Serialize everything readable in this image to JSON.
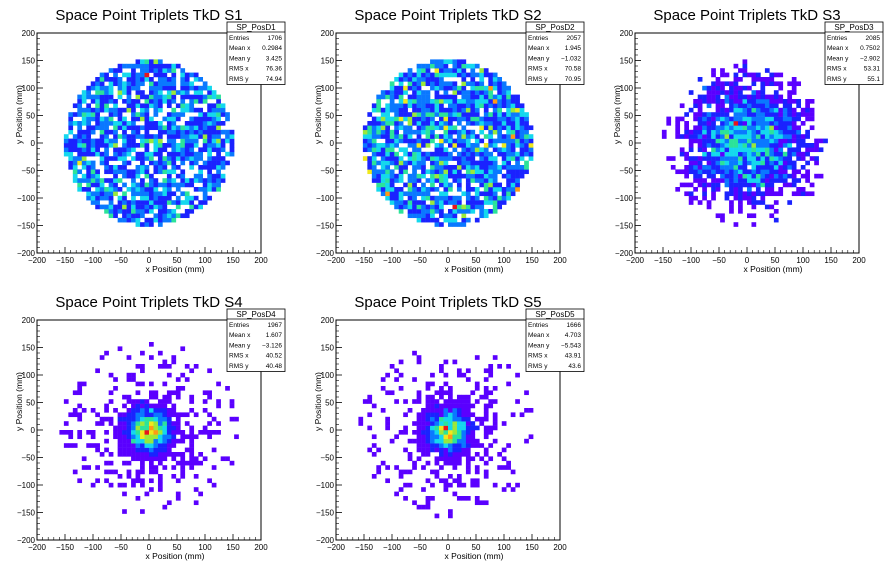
{
  "chart_data": [
    {
      "type": "heatmap",
      "title": "Space Point Triplets TkD S1",
      "xlabel": "x Position (mm)",
      "ylabel": "y Position (mm)",
      "xlim": [
        -200,
        200
      ],
      "ylim": [
        -200,
        200
      ],
      "x_ticks": [
        "−200",
        "−150",
        "−100",
        "−50",
        "0",
        "50",
        "100",
        "150",
        "200"
      ],
      "y_ticks": [
        "200",
        "150",
        "100",
        "50",
        "0",
        "−50",
        "−100",
        "−150",
        "−200"
      ],
      "distribution": {
        "shape": "uniform-disk",
        "radius_mm": 150,
        "entries": 1706,
        "bin_mm": 8
      },
      "stats": {
        "name": "SP_PosD1",
        "rows": [
          [
            "Entries",
            "1706"
          ],
          [
            "Mean x",
            "0.2984"
          ],
          [
            "Mean y",
            "3.425"
          ],
          [
            "RMS x",
            "76.36"
          ],
          [
            "RMS y",
            "74.94"
          ]
        ]
      }
    },
    {
      "type": "heatmap",
      "title": "Space Point Triplets TkD S2",
      "xlabel": "x Position (mm)",
      "ylabel": "y Position (mm)",
      "xlim": [
        -200,
        200
      ],
      "ylim": [
        -200,
        200
      ],
      "x_ticks": [
        "−200",
        "−150",
        "−100",
        "−50",
        "0",
        "50",
        "100",
        "150",
        "200"
      ],
      "y_ticks": [
        "200",
        "150",
        "100",
        "50",
        "0",
        "−50",
        "−100",
        "−150",
        "−200"
      ],
      "distribution": {
        "shape": "uniform-disk",
        "radius_mm": 152,
        "entries": 2057,
        "bin_mm": 8
      },
      "stats": {
        "name": "SP_PosD2",
        "rows": [
          [
            "Entries",
            "2057"
          ],
          [
            "Mean x",
            "1.945"
          ],
          [
            "Mean y",
            "−1.032"
          ],
          [
            "RMS x",
            "70.58"
          ],
          [
            "RMS y",
            "70.95"
          ]
        ]
      }
    },
    {
      "type": "heatmap",
      "title": "Space Point Triplets TkD S3",
      "xlabel": "x Position (mm)",
      "ylabel": "y Position (mm)",
      "xlim": [
        -200,
        200
      ],
      "ylim": [
        -200,
        200
      ],
      "x_ticks": [
        "−200",
        "−150",
        "−100",
        "−50",
        "0",
        "50",
        "100",
        "150",
        "200"
      ],
      "y_ticks": [
        "200",
        "150",
        "100",
        "50",
        "0",
        "−50",
        "−100",
        "−150",
        "−200"
      ],
      "distribution": {
        "shape": "gaussian",
        "sigma_mm": 55,
        "entries": 2085,
        "bin_mm": 8
      },
      "stats": {
        "name": "SP_PosD3",
        "rows": [
          [
            "Entries",
            "2085"
          ],
          [
            "Mean x",
            "0.7502"
          ],
          [
            "Mean y",
            "−2.902"
          ],
          [
            "RMS x",
            "53.31"
          ],
          [
            "RMS y",
            "55.1"
          ]
        ]
      }
    },
    {
      "type": "heatmap",
      "title": "Space Point Triplets TkD S4",
      "xlabel": "x Position (mm)",
      "ylabel": "y Position (mm)",
      "xlim": [
        -200,
        200
      ],
      "ylim": [
        -200,
        200
      ],
      "x_ticks": [
        "−200",
        "−150",
        "−100",
        "−50",
        "0",
        "50",
        "100",
        "150",
        "200"
      ],
      "y_ticks": [
        "200",
        "150",
        "100",
        "50",
        "0",
        "−50",
        "−100",
        "−150",
        "−200"
      ],
      "distribution": {
        "shape": "gaussian-core-tails",
        "sigma_mm": 22,
        "entries": 1967,
        "bin_mm": 8
      },
      "stats": {
        "name": "SP_PosD4",
        "rows": [
          [
            "Entries",
            "1967"
          ],
          [
            "Mean x",
            "1.607"
          ],
          [
            "Mean y",
            "−3.126"
          ],
          [
            "RMS x",
            "40.52"
          ],
          [
            "RMS y",
            "40.48"
          ]
        ]
      }
    },
    {
      "type": "heatmap",
      "title": "Space Point Triplets TkD S5",
      "xlabel": "x Position (mm)",
      "ylabel": "y Position (mm)",
      "xlim": [
        -200,
        200
      ],
      "ylim": [
        -200,
        200
      ],
      "x_ticks": [
        "−200",
        "−150",
        "−100",
        "−50",
        "0",
        "50",
        "100",
        "150",
        "200"
      ],
      "y_ticks": [
        "200",
        "150",
        "100",
        "50",
        "0",
        "−50",
        "−100",
        "−150",
        "−200"
      ],
      "distribution": {
        "shape": "gaussian-core-tails",
        "sigma_mm": 20,
        "entries": 1666,
        "bin_mm": 8
      },
      "stats": {
        "name": "SP_PosD5",
        "rows": [
          [
            "Entries",
            "1666"
          ],
          [
            "Mean x",
            "4.703"
          ],
          [
            "Mean y",
            "−5.543"
          ],
          [
            "RMS x",
            "43.91"
          ],
          [
            "RMS y",
            "43.6"
          ]
        ]
      }
    }
  ],
  "palette": [
    "#5a00ff",
    "#1a22ff",
    "#0a78ff",
    "#14d8ee",
    "#2be39a",
    "#9be83a",
    "#f0e81c",
    "#ff9a14",
    "#e8141c"
  ]
}
